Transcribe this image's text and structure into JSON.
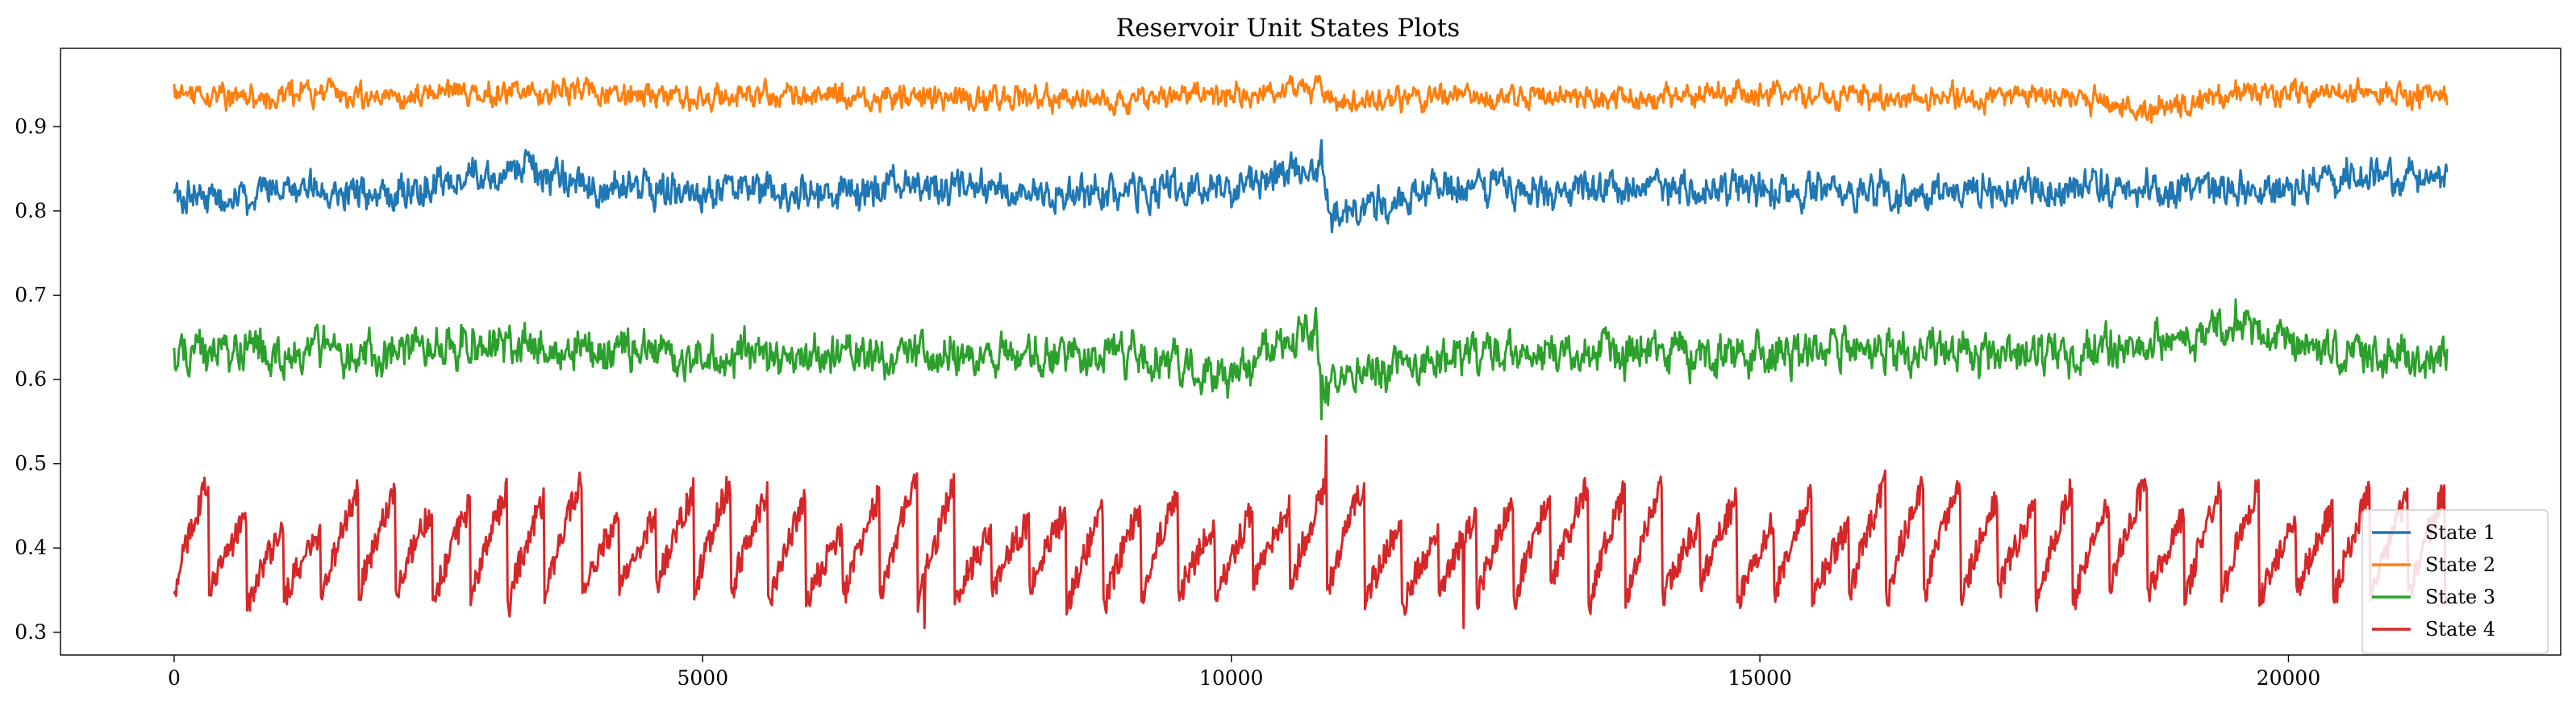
{
  "chart_data": {
    "type": "line",
    "title": "Reservoir Unit States Plots",
    "xlabel": "",
    "ylabel": "",
    "xlim": [
      -1075,
      22575
    ],
    "ylim": [
      0.273,
      0.993
    ],
    "x_ticks": [
      0,
      5000,
      10000,
      15000,
      20000
    ],
    "y_ticks": [
      0.3,
      0.4,
      0.5,
      0.6,
      0.7,
      0.8,
      0.9
    ],
    "grid": false,
    "legend_position": "lower-right",
    "x_range": [
      0,
      21500
    ],
    "series": [
      {
        "name": "State 1",
        "color": "#1f77b4",
        "baseline": 0.825,
        "min": 0.775,
        "max": 0.884,
        "keypoints": [
          [
            0,
            0.83
          ],
          [
            500,
            0.8
          ],
          [
            1000,
            0.83
          ],
          [
            2000,
            0.82
          ],
          [
            3300,
            0.87
          ],
          [
            4000,
            0.83
          ],
          [
            5000,
            0.82
          ],
          [
            6000,
            0.82
          ],
          [
            7000,
            0.83
          ],
          [
            8000,
            0.82
          ],
          [
            9000,
            0.82
          ],
          [
            10000,
            0.82
          ],
          [
            10850,
            0.884
          ],
          [
            10950,
            0.775
          ],
          [
            12000,
            0.83
          ],
          [
            13000,
            0.82
          ],
          [
            14000,
            0.83
          ],
          [
            15000,
            0.83
          ],
          [
            16000,
            0.82
          ],
          [
            17000,
            0.82
          ],
          [
            18000,
            0.83
          ],
          [
            19000,
            0.82
          ],
          [
            20000,
            0.83
          ],
          [
            20800,
            0.87
          ],
          [
            21500,
            0.83
          ]
        ]
      },
      {
        "name": "State 2",
        "color": "#ff7f0e",
        "baseline": 0.935,
        "min": 0.905,
        "max": 0.96,
        "keypoints": [
          [
            0,
            0.95
          ],
          [
            500,
            0.93
          ],
          [
            1000,
            0.94
          ],
          [
            2000,
            0.935
          ],
          [
            3300,
            0.955
          ],
          [
            4000,
            0.935
          ],
          [
            5000,
            0.935
          ],
          [
            6000,
            0.94
          ],
          [
            7000,
            0.935
          ],
          [
            8000,
            0.93
          ],
          [
            9000,
            0.935
          ],
          [
            10000,
            0.94
          ],
          [
            10800,
            0.96
          ],
          [
            11000,
            0.92
          ],
          [
            12000,
            0.935
          ],
          [
            13000,
            0.935
          ],
          [
            14000,
            0.935
          ],
          [
            15000,
            0.94
          ],
          [
            16000,
            0.935
          ],
          [
            17000,
            0.935
          ],
          [
            18000,
            0.935
          ],
          [
            18700,
            0.905
          ],
          [
            19500,
            0.94
          ],
          [
            20500,
            0.945
          ],
          [
            21500,
            0.94
          ]
        ]
      },
      {
        "name": "State 3",
        "color": "#2ca02c",
        "baseline": 0.63,
        "min": 0.553,
        "max": 0.695,
        "keypoints": [
          [
            0,
            0.63
          ],
          [
            500,
            0.64
          ],
          [
            1000,
            0.63
          ],
          [
            2000,
            0.63
          ],
          [
            3300,
            0.66
          ],
          [
            4000,
            0.64
          ],
          [
            5000,
            0.63
          ],
          [
            6000,
            0.63
          ],
          [
            7000,
            0.63
          ],
          [
            8000,
            0.63
          ],
          [
            9000,
            0.63
          ],
          [
            10000,
            0.57
          ],
          [
            10800,
            0.69
          ],
          [
            10850,
            0.553
          ],
          [
            12000,
            0.63
          ],
          [
            13000,
            0.63
          ],
          [
            14000,
            0.63
          ],
          [
            15000,
            0.63
          ],
          [
            16000,
            0.64
          ],
          [
            17000,
            0.63
          ],
          [
            18000,
            0.63
          ],
          [
            19500,
            0.695
          ],
          [
            20500,
            0.63
          ],
          [
            21000,
            0.63
          ],
          [
            21500,
            0.625
          ]
        ]
      },
      {
        "name": "State 4",
        "color": "#d62728",
        "pattern": "sawtooth",
        "min": 0.305,
        "max": 0.533,
        "keypoints": [
          [
            0,
            0.4
          ],
          [
            300,
            0.48
          ],
          [
            1000,
            0.33
          ],
          [
            2000,
            0.48
          ],
          [
            3000,
            0.32
          ],
          [
            3600,
            0.48
          ],
          [
            4100,
            0.505
          ],
          [
            5000,
            0.33
          ],
          [
            6000,
            0.47
          ],
          [
            7100,
            0.305
          ],
          [
            8000,
            0.47
          ],
          [
            9000,
            0.33
          ],
          [
            10000,
            0.46
          ],
          [
            10900,
            0.533
          ],
          [
            12000,
            0.33
          ],
          [
            12200,
            0.305
          ],
          [
            13000,
            0.46
          ],
          [
            14000,
            0.33
          ],
          [
            15000,
            0.47
          ],
          [
            16500,
            0.33
          ],
          [
            17500,
            0.47
          ],
          [
            19000,
            0.32
          ],
          [
            20000,
            0.49
          ],
          [
            21000,
            0.35
          ],
          [
            21500,
            0.48
          ]
        ]
      }
    ]
  }
}
